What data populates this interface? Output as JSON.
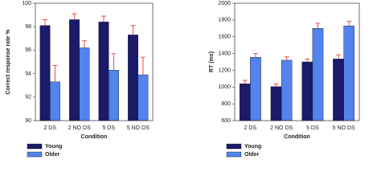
{
  "chart_data": [
    {
      "type": "bar",
      "ylabel": "Correct response rate %",
      "xlabel": "Condition",
      "categories": [
        "2 DS",
        "2 NO DS",
        "5 DS",
        "5 NO DS"
      ],
      "series": [
        {
          "name": "Young",
          "color": "#1b1a6b",
          "values": [
            98.1,
            98.6,
            98.4,
            97.3
          ],
          "errors": [
            0.5,
            0.5,
            0.5,
            0.8
          ]
        },
        {
          "name": "Older",
          "color": "#5283ee",
          "values": [
            93.3,
            96.2,
            94.3,
            93.9
          ],
          "errors": [
            1.4,
            0.6,
            1.4,
            1.5
          ]
        }
      ],
      "error_color": "#e5504a",
      "ylim": [
        90,
        100
      ],
      "yticks": [
        90,
        92,
        94,
        96,
        98,
        100
      ]
    },
    {
      "type": "bar",
      "ylabel": "RT (ms)",
      "xlabel": "Condition",
      "categories": [
        "2 DS",
        "2 NO DS",
        "5 DS",
        "5 NO DS"
      ],
      "series": [
        {
          "name": "Young",
          "color": "#1b1a6b",
          "values": [
            1040,
            1005,
            1300,
            1335
          ],
          "errors": [
            40,
            30,
            35,
            50
          ]
        },
        {
          "name": "Older",
          "color": "#5283ee",
          "values": [
            1355,
            1320,
            1700,
            1730
          ],
          "errors": [
            45,
            40,
            60,
            55
          ]
        }
      ],
      "error_color": "#e5504a",
      "ylim": [
        600,
        2000
      ],
      "yticks": [
        600,
        800,
        1000,
        1200,
        1400,
        1600,
        1800,
        2000
      ]
    }
  ]
}
